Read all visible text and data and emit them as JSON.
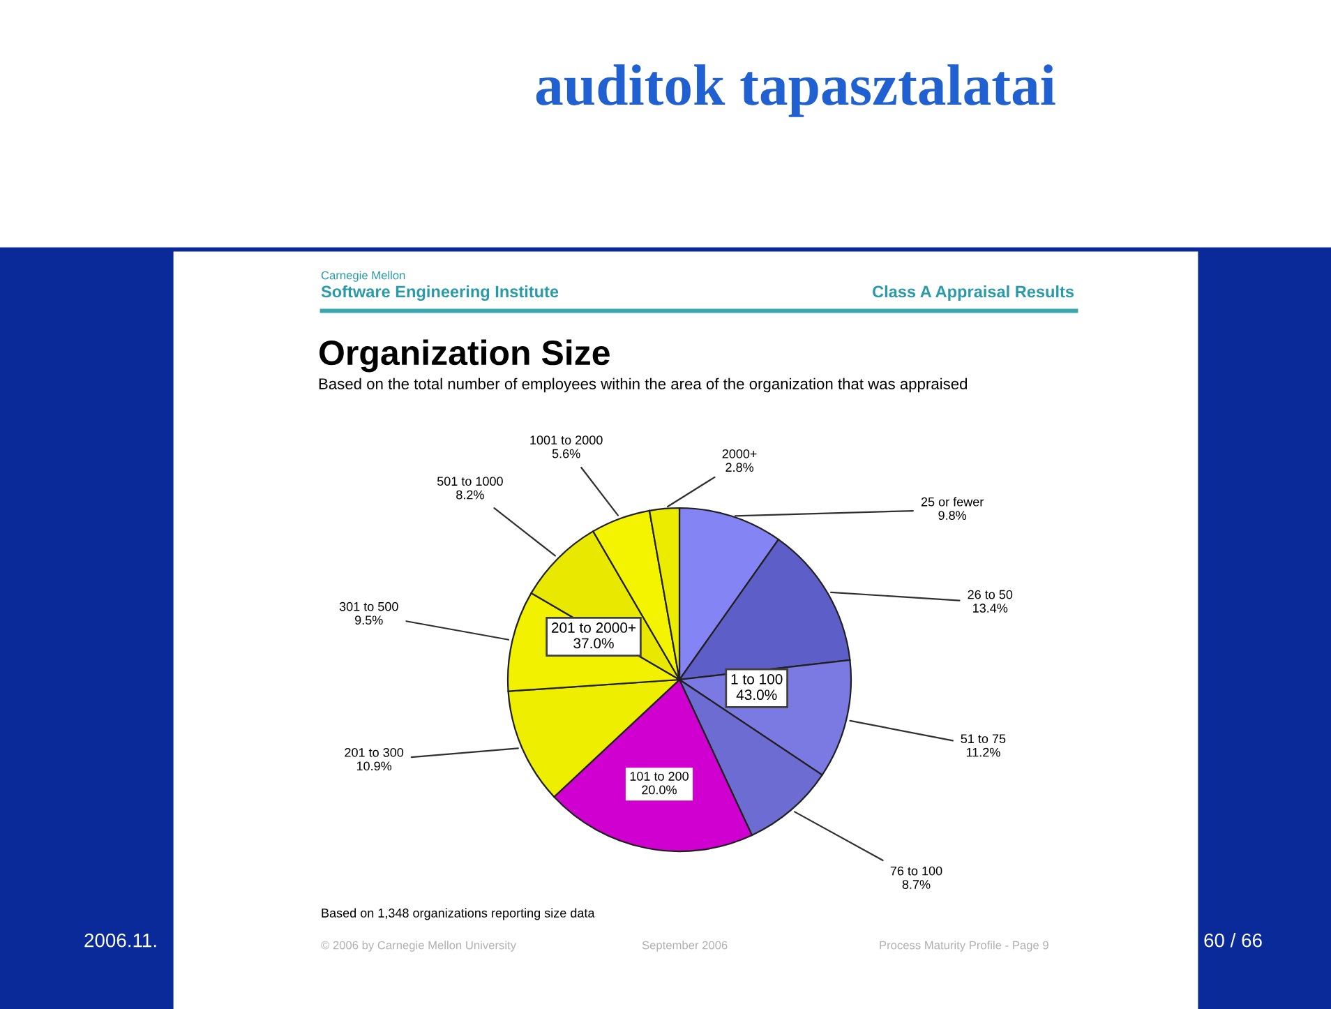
{
  "chart_data": {
    "type": "pie",
    "title": "Organization Size",
    "subtitle": "Based on the total number of employees within the area of the organization that was appraised",
    "categories": [
      "25 or fewer",
      "26 to 50",
      "51 to 75",
      "76 to 100",
      "101 to 200",
      "201 to 300",
      "301 to 500",
      "501 to 1000",
      "1001 to 2000",
      "2000+"
    ],
    "values": [
      9.8,
      13.4,
      11.2,
      8.7,
      20.0,
      10.9,
      9.5,
      8.2,
      5.6,
      2.8
    ],
    "value_labels": [
      "9.8%",
      "13.4%",
      "11.2%",
      "8.7%",
      "20.0%",
      "10.9%",
      "9.5%",
      "8.2%",
      "5.6%",
      "2.8%"
    ],
    "colors": [
      "#8484f4",
      "#5e5ec8",
      "#7a7ae2",
      "#6c6cd2",
      "#d000d0",
      "#eeee00",
      "#f2f200",
      "#e8e800",
      "#f4f400",
      "#ecec00"
    ],
    "annotations": [
      "auditok tapasztalatai",
      "1 to 100\n43.0%",
      "201 to 2000+\n37.0%",
      "Carnegie Mellon",
      "Software Engineering Institute",
      "Class A Appraisal Results",
      "Based on 1,348 organizations reporting size data",
      "© 2006 by Carnegie Mellon University",
      "September 2006",
      "Process Maturity Profile - Page 9",
      "2006.11.",
      "60 / 66"
    ]
  }
}
